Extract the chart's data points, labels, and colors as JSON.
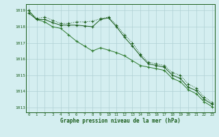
{
  "xlabel": "Graphe pression niveau de la mer (hPa)",
  "background_color": "#d4eef0",
  "plot_bg_color": "#d4eef0",
  "grid_color": "#b0d0d4",
  "line_color1": "#1a5c1a",
  "line_color2": "#1a5c1a",
  "line_color3": "#2d7a2d",
  "axis_color": "#1a5c1a",
  "ylim": [
    1012.7,
    1019.4
  ],
  "xlim": [
    -0.3,
    23.3
  ],
  "yticks": [
    1013,
    1014,
    1015,
    1016,
    1017,
    1018,
    1019
  ],
  "xticks": [
    0,
    1,
    2,
    3,
    4,
    5,
    6,
    7,
    8,
    9,
    10,
    11,
    12,
    13,
    14,
    15,
    16,
    17,
    18,
    19,
    20,
    21,
    22,
    23
  ],
  "series1": [
    1019.0,
    1018.5,
    1018.6,
    1018.4,
    1018.2,
    1018.2,
    1018.3,
    1018.3,
    1018.35,
    1018.5,
    1018.6,
    1018.1,
    1017.5,
    1017.0,
    1016.3,
    1015.8,
    1015.7,
    1015.6,
    1015.15,
    1015.0,
    1014.45,
    1014.2,
    1013.65,
    1013.3
  ],
  "series2": [
    1018.85,
    1018.45,
    1018.45,
    1018.25,
    1018.1,
    1018.1,
    1018.1,
    1018.05,
    1018.0,
    1018.45,
    1018.55,
    1018.0,
    1017.35,
    1016.8,
    1016.2,
    1015.7,
    1015.6,
    1015.5,
    1015.0,
    1014.8,
    1014.25,
    1014.05,
    1013.5,
    1013.2
  ],
  "series3": [
    1019.0,
    1018.45,
    1018.3,
    1018.0,
    1017.9,
    1017.5,
    1017.1,
    1016.8,
    1016.5,
    1016.7,
    1016.55,
    1016.4,
    1016.2,
    1015.9,
    1015.6,
    1015.5,
    1015.4,
    1015.3,
    1014.8,
    1014.6,
    1014.1,
    1013.85,
    1013.35,
    1013.05
  ]
}
